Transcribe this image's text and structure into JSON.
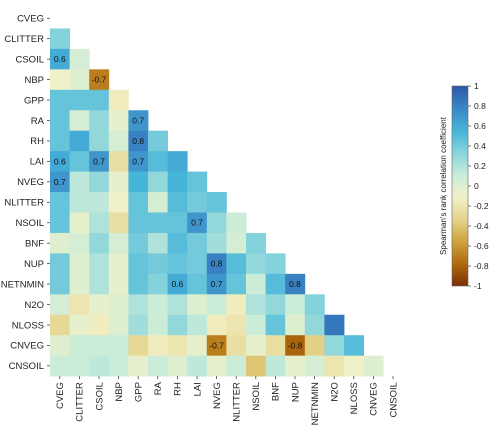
{
  "chart_data": {
    "type": "heatmap",
    "variables": [
      "CVEG",
      "CLITTER",
      "CSOIL",
      "NBP",
      "GPP",
      "RA",
      "RH",
      "LAI",
      "NVEG",
      "NLITTER",
      "NSOIL",
      "BNF",
      "NUP",
      "NETNMIN",
      "N2O",
      "NLOSS",
      "CNVEG",
      "CNSOIL"
    ],
    "matrix_shape": "lower-triangular",
    "values": [
      [],
      [
        0.35
      ],
      [
        0.6,
        0.05
      ],
      [
        -0.1,
        0.0,
        -0.7
      ],
      [
        0.45,
        0.45,
        0.45,
        -0.15
      ],
      [
        0.45,
        0.05,
        0.3,
        -0.05,
        0.7
      ],
      [
        0.45,
        0.6,
        0.3,
        0.05,
        0.8,
        0.4
      ],
      [
        0.6,
        0.45,
        0.7,
        -0.25,
        0.7,
        0.5,
        0.6
      ],
      [
        0.7,
        0.15,
        0.3,
        -0.05,
        0.55,
        0.3,
        0.55,
        0.45
      ],
      [
        0.45,
        0.15,
        0.15,
        -0.1,
        0.45,
        0.05,
        0.5,
        0.4,
        0.45
      ],
      [
        0.45,
        -0.05,
        0.2,
        -0.25,
        0.45,
        0.45,
        0.45,
        0.7,
        0.3,
        0.1
      ],
      [
        0.0,
        0.05,
        0.3,
        0.05,
        0.4,
        0.2,
        0.5,
        0.4,
        0.25,
        0.05,
        0.35
      ],
      [
        0.4,
        0.0,
        0.2,
        -0.05,
        0.45,
        0.4,
        0.45,
        0.4,
        0.8,
        0.5,
        0.3,
        0.35
      ],
      [
        0.4,
        0.0,
        0.2,
        -0.05,
        0.45,
        0.35,
        0.6,
        0.45,
        0.7,
        0.45,
        0.1,
        0.5,
        0.8
      ],
      [
        0.05,
        -0.2,
        -0.05,
        0.0,
        0.2,
        0.1,
        0.2,
        0.0,
        0.1,
        -0.15,
        0.2,
        0.3,
        0.1,
        0.35
      ],
      [
        -0.3,
        -0.05,
        -0.15,
        0.0,
        0.25,
        0.1,
        0.3,
        0.15,
        -0.15,
        -0.2,
        0.1,
        0.45,
        0.0,
        0.3,
        0.85
      ],
      [
        0.0,
        0.1,
        0.1,
        0.1,
        -0.3,
        -0.15,
        -0.2,
        -0.05,
        -0.7,
        -0.25,
        -0.05,
        -0.25,
        -0.8,
        -0.35,
        0.3,
        0.5
      ],
      [
        0.1,
        0.1,
        0.15,
        0.1,
        -0.05,
        0.1,
        0.0,
        0.15,
        -0.05,
        0.1,
        -0.4,
        0.15,
        -0.05,
        0.05,
        -0.2,
        -0.1,
        0.0
      ]
    ],
    "annotations": [
      {
        "row": "CSOIL",
        "col": "CVEG",
        "text": "0.6"
      },
      {
        "row": "NBP",
        "col": "CSOIL",
        "text": "-0.7"
      },
      {
        "row": "RA",
        "col": "GPP",
        "text": "0.7"
      },
      {
        "row": "RH",
        "col": "GPP",
        "text": "0.8"
      },
      {
        "row": "LAI",
        "col": "CVEG",
        "text": "0.6"
      },
      {
        "row": "LAI",
        "col": "CSOIL",
        "text": "0.7"
      },
      {
        "row": "LAI",
        "col": "GPP",
        "text": "0.7"
      },
      {
        "row": "NVEG",
        "col": "CVEG",
        "text": "0.7"
      },
      {
        "row": "NSOIL",
        "col": "LAI",
        "text": "0.7"
      },
      {
        "row": "NUP",
        "col": "NVEG",
        "text": "0.8"
      },
      {
        "row": "NETNMIN",
        "col": "RH",
        "text": "0.6"
      },
      {
        "row": "NETNMIN",
        "col": "NVEG",
        "text": "0.7"
      },
      {
        "row": "NETNMIN",
        "col": "NUP",
        "text": "0.8"
      },
      {
        "row": "CNVEG",
        "col": "NVEG",
        "text": "-0.7"
      },
      {
        "row": "CNVEG",
        "col": "NUP",
        "text": "-0.8"
      }
    ],
    "colorbar": {
      "title": "Spearman's rank correlation coefficient",
      "range": [
        -1,
        1
      ],
      "ticks": [
        "1",
        "0.8",
        "0.6",
        "0.4",
        "0.2",
        "0",
        "-0.2",
        "-0.4",
        "-0.6",
        "-0.8",
        "-1"
      ],
      "stops": [
        "#7b2d04",
        "#b06a0e",
        "#cfa23d",
        "#e4d48c",
        "#f2f1c8",
        "#c9ecd8",
        "#88d4dc",
        "#45b4d9",
        "#3a86c5",
        "#2c58a8"
      ],
      "placement": "right"
    },
    "grid": false,
    "legend": "colorbar-right"
  }
}
